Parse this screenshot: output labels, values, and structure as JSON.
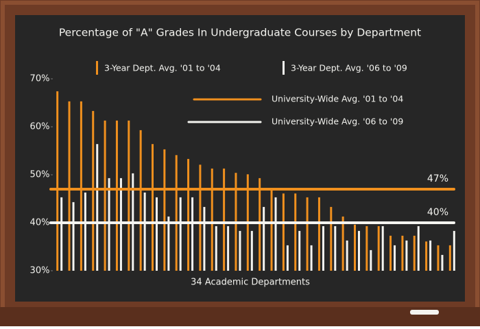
{
  "chart_data": {
    "type": "bar",
    "title": "Percentage of \"A\" Grades In Undergraduate Courses by Department",
    "x_label": "34 Academic Departments",
    "categories": [
      null,
      null,
      null,
      null,
      null,
      null,
      null,
      null,
      null,
      null,
      null,
      null,
      null,
      null,
      null,
      null,
      null,
      null,
      null,
      null,
      null,
      null,
      null,
      null,
      null,
      null,
      null,
      null,
      null,
      null,
      null,
      null,
      null,
      null
    ],
    "series": [
      {
        "name": "3-Year Dept. Avg. '01 to '04",
        "color": "#f0901e",
        "values": [
          67.4,
          65.3,
          65.3,
          63.3,
          61.3,
          61.3,
          61.3,
          59.3,
          56.4,
          55.3,
          54.1,
          53.3,
          52.1,
          51.3,
          51.3,
          50.4,
          50.1,
          49.3,
          47.1,
          46.1,
          46.1,
          45.3,
          45.3,
          43.3,
          41.3,
          39.6,
          39.3,
          39.3,
          37.3,
          37.3,
          37.3,
          36.1,
          35.3,
          35.3
        ]
      },
      {
        "name": "3-Year Dept. Avg. '06 to '09",
        "color": "#f4f4f0",
        "values": [
          45.3,
          44.3,
          46.3,
          56.4,
          49.3,
          49.3,
          50.3,
          46.3,
          45.3,
          41.3,
          45.3,
          45.3,
          43.3,
          39.3,
          39.3,
          38.3,
          38.3,
          43.3,
          45.3,
          35.3,
          38.3,
          35.3,
          39.3,
          39.3,
          36.3,
          38.3,
          34.3,
          39.3,
          35.3,
          36.3,
          39.3,
          36.3,
          33.3,
          38.3
        ]
      }
    ],
    "reference_lines": [
      {
        "name": "University-Wide Avg. '01 to '04",
        "color": "#f0901e",
        "value": 47,
        "label": "47%"
      },
      {
        "name": "University-Wide Avg. '06 to '09",
        "color": "#f4f4f0",
        "value": 40,
        "label": "40%"
      }
    ],
    "ylim": [
      30,
      70
    ],
    "yticks": [
      {
        "value": 30,
        "label": "30%"
      },
      {
        "value": 40,
        "label": "40%"
      },
      {
        "value": 50,
        "label": "50%"
      },
      {
        "value": 60,
        "label": "60%"
      },
      {
        "value": 70,
        "label": "70%"
      }
    ]
  }
}
